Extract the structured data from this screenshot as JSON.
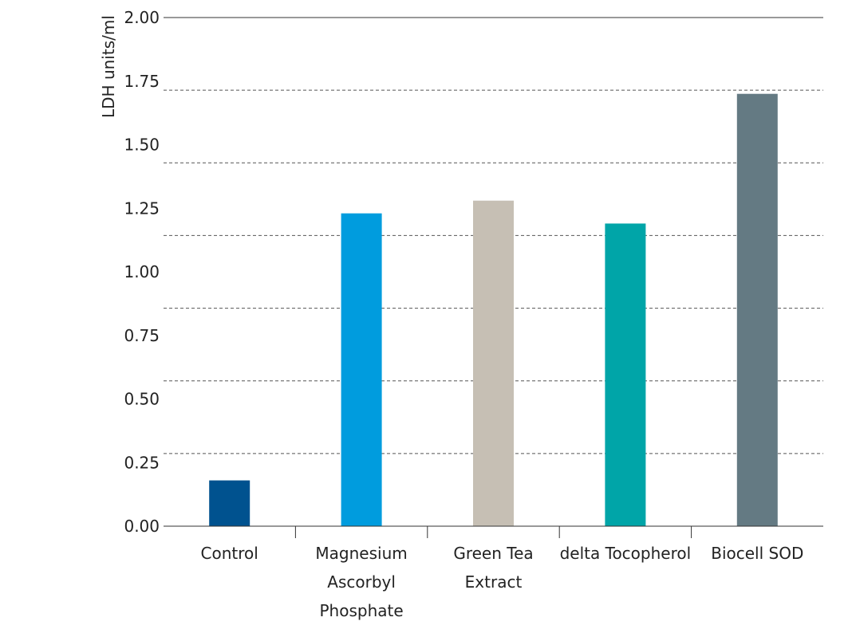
{
  "chart_data": {
    "type": "bar",
    "categories": [
      [
        "Control"
      ],
      [
        "Magnesium",
        "Ascorbyl",
        "Phosphate"
      ],
      [
        "Green Tea",
        "Extract"
      ],
      [
        "delta Tocopherol"
      ],
      [
        "Biocell SOD"
      ]
    ],
    "values": [
      0.18,
      1.23,
      1.28,
      1.19,
      1.7
    ],
    "colors": [
      "#00528F",
      "#009CDE",
      "#C6BFB4",
      "#00A5A8",
      "#647A83"
    ],
    "ylabel": "LDH units/ml",
    "ylim": [
      0,
      2.0
    ],
    "yticks": [
      "0.00",
      "0.25",
      "0.50",
      "0.75",
      "1.00",
      "1.25",
      "1.50",
      "1.75",
      "2.00"
    ],
    "grid": "dashed horizontal",
    "legend": "none"
  }
}
